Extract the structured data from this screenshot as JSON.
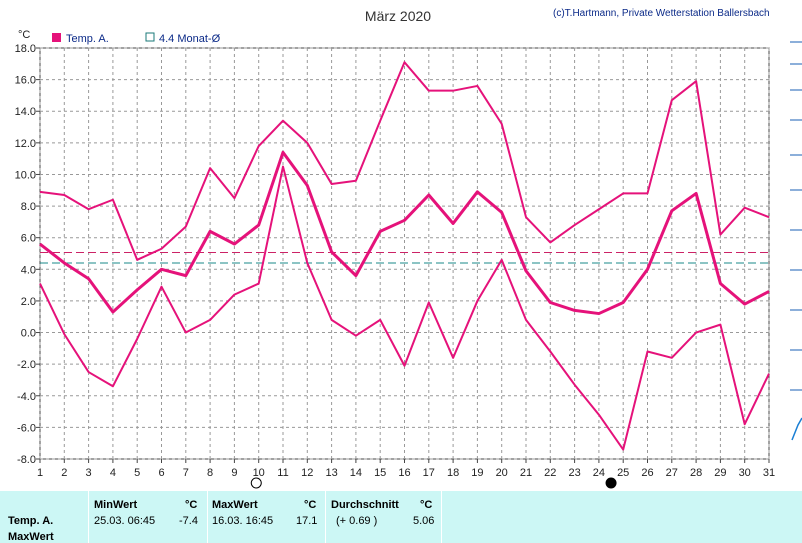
{
  "title": "März 2020",
  "copyright": "(c)T.Hartmann, Private Wetterstation Ballersbach",
  "unit_label": "°C",
  "legend": [
    {
      "label": "Temp. A.",
      "color": "#e5127a",
      "marker": "filled-square"
    },
    {
      "label": "4.4 Monat-Ø",
      "color": "#1a7a7a",
      "marker": "hollow-square"
    }
  ],
  "chart_data": {
    "type": "line",
    "x": [
      1,
      2,
      3,
      4,
      5,
      6,
      7,
      8,
      9,
      10,
      11,
      12,
      13,
      14,
      15,
      16,
      17,
      18,
      19,
      20,
      21,
      22,
      23,
      24,
      25,
      26,
      27,
      28,
      29,
      30,
      31
    ],
    "series": [
      {
        "role": "max",
        "color": "#e5127a",
        "width": 2,
        "values": [
          8.9,
          8.7,
          7.8,
          8.4,
          4.6,
          5.3,
          6.7,
          10.4,
          8.5,
          11.8,
          13.4,
          12.0,
          9.4,
          9.6,
          13.4,
          17.1,
          15.3,
          15.3,
          15.6,
          13.2,
          7.3,
          5.7,
          6.8,
          7.8,
          8.8,
          8.8,
          14.7,
          15.9,
          6.2,
          7.9,
          7.3
        ]
      },
      {
        "name": "Temp. A.",
        "role": "mean",
        "color": "#e5127a",
        "width": 3,
        "values": [
          5.6,
          4.4,
          3.4,
          1.3,
          2.7,
          4.0,
          3.6,
          6.4,
          5.6,
          6.8,
          11.4,
          9.3,
          5.1,
          3.6,
          6.4,
          7.1,
          8.7,
          6.9,
          8.9,
          7.6,
          3.9,
          1.9,
          1.4,
          1.2,
          1.9,
          4.0,
          7.7,
          8.8,
          3.1,
          1.8,
          2.6
        ]
      },
      {
        "role": "min",
        "color": "#e5127a",
        "width": 2,
        "values": [
          3.1,
          -0.1,
          -2.5,
          -3.4,
          -0.4,
          2.9,
          0.0,
          0.8,
          2.4,
          3.1,
          10.5,
          4.4,
          0.8,
          -0.2,
          0.8,
          -2.1,
          1.9,
          -1.6,
          2.0,
          4.6,
          0.8,
          -1.2,
          -3.3,
          -5.2,
          -7.4,
          -1.2,
          -1.6,
          0.0,
          0.5,
          -5.8,
          -2.6
        ]
      }
    ],
    "reference_lines": [
      {
        "value": 5.06,
        "color": "#cc2266",
        "style": "dashed"
      },
      {
        "value": 4.4,
        "color": "#1a8a8a",
        "style": "dashed"
      }
    ],
    "ylim": [
      -8.0,
      18.0
    ],
    "yticks": [
      "18.0",
      "16.0",
      "14.0",
      "12.0",
      "10.0",
      "8.0",
      "6.0",
      "4.0",
      "2.0",
      "0.0",
      "-2.0",
      "-4.0",
      "-6.0",
      "-8.0"
    ],
    "xticks": [
      "1",
      "2",
      "3",
      "4",
      "5",
      "6",
      "7",
      "8",
      "9",
      "10",
      "11",
      "12",
      "13",
      "14",
      "15",
      "16",
      "17",
      "18",
      "19",
      "20",
      "21",
      "22",
      "23",
      "24",
      "25",
      "26",
      "27",
      "28",
      "29",
      "30",
      "31"
    ],
    "moon_markers": [
      {
        "day": 9.9,
        "type": "full-moon"
      },
      {
        "day": 24.5,
        "type": "new-moon"
      }
    ],
    "grid": true
  },
  "panel": {
    "row_label_1": "Temp. A.",
    "row_label_2": "MaxWert",
    "min_header": "MinWert",
    "min_unit": "°C",
    "min_time": "25.03.  06:45",
    "min_value": "-7.4",
    "max_header": "MaxWert",
    "max_unit": "°C",
    "max_time": "16.03.  16:45",
    "max_value": "17.1",
    "avg_header": "Durchschnitt",
    "avg_unit": "°C",
    "avg_delta": "(+ 0.69 )",
    "avg_value": "5.06"
  }
}
